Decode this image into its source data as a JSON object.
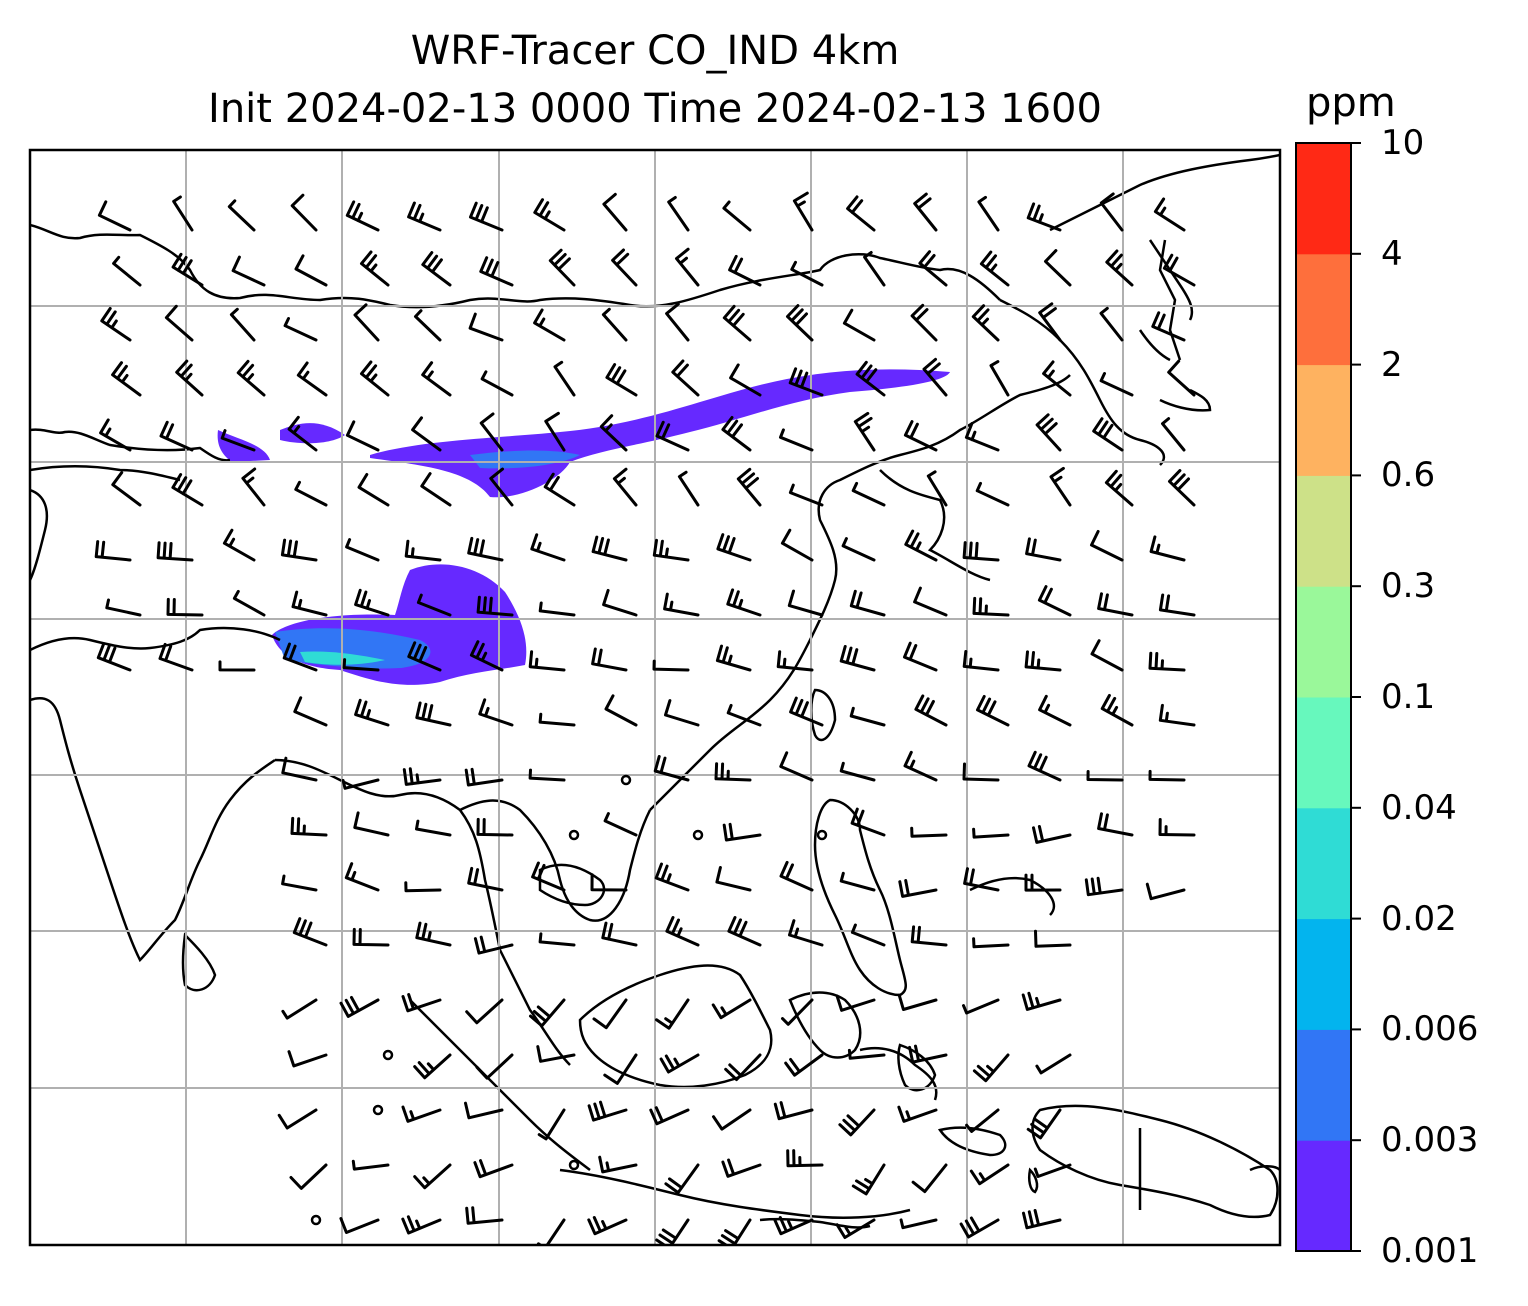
{
  "title": {
    "line1": "WRF-Tracer CO_IND 4km",
    "line2": "Init 2024-02-13 0000 Time 2024-02-13 1600"
  },
  "colorbar": {
    "unit": "ppm",
    "levels": [
      "0.001",
      "0.003",
      "0.006",
      "0.02",
      "0.04",
      "0.1",
      "0.3",
      "0.6",
      "2",
      "4",
      "10"
    ],
    "colors": [
      "#6629ff",
      "#3176f5",
      "#03b4ee",
      "#2fdcd5",
      "#67f8bd",
      "#9af89a",
      "#cde188",
      "#feb260",
      "#fe6f3c",
      "#ff2915"
    ]
  },
  "map": {
    "gridlines": true,
    "region": "South and Southeast Asia"
  }
}
